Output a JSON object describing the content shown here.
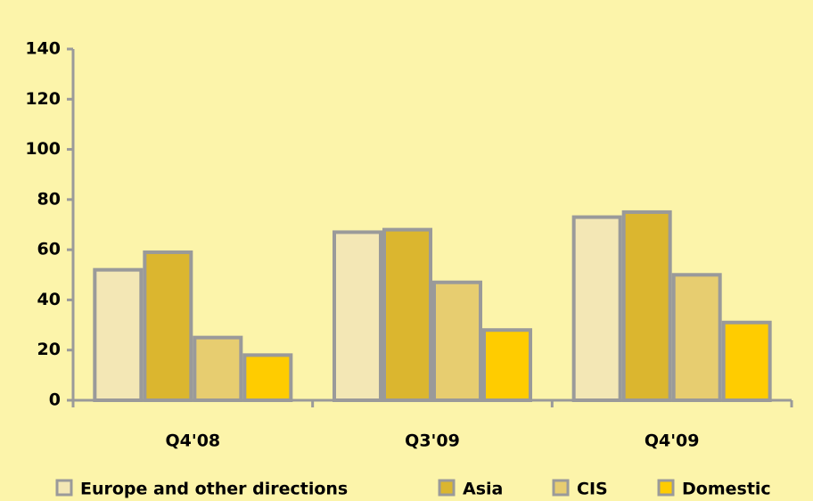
{
  "chart_data": {
    "type": "bar",
    "categories": [
      "Q4'08",
      "Q3'09",
      "Q4'09"
    ],
    "series": [
      {
        "name": "Europe and other directions",
        "color": "#f3e7b5",
        "values": [
          52,
          67,
          73
        ]
      },
      {
        "name": "Asia",
        "color": "#dbb62f",
        "values": [
          59,
          68,
          75
        ]
      },
      {
        "name": "CIS",
        "color": "#e7cd70",
        "values": [
          25,
          47,
          50
        ]
      },
      {
        "name": "Domestic",
        "color": "#ffcc00",
        "values": [
          18,
          28,
          31
        ]
      }
    ],
    "ylim": [
      0,
      140
    ],
    "yticks": [
      0,
      20,
      40,
      60,
      80,
      100,
      120,
      140
    ],
    "grid": false,
    "legend": "bottom"
  }
}
